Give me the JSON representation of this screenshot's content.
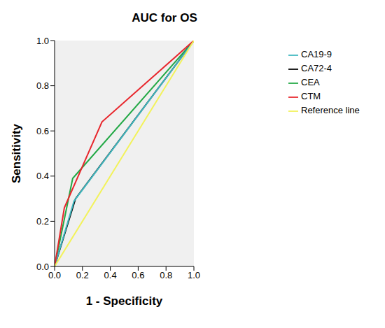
{
  "chart_data": {
    "type": "line",
    "title": "AUC for OS",
    "x_label": "1 - Specificity",
    "y_label": "Sensitivity",
    "xlim": [
      0,
      1
    ],
    "ylim": [
      0,
      1
    ],
    "xticks": [
      {
        "value": 0,
        "label": "0.0"
      },
      0.2,
      0.4,
      0.6,
      0.8,
      {
        "value": 1,
        "label": "1.0"
      }
    ],
    "yticks": [
      {
        "value": 0,
        "label": "0.0"
      },
      0.2,
      0.4,
      0.6,
      0.8,
      {
        "value": 1,
        "label": "1.0"
      }
    ],
    "grid": false,
    "legend": "right",
    "series": [
      {
        "name": "CEA",
        "color": "#22a845",
        "x": [
          0,
          0.13,
          1
        ],
        "values": [
          0,
          0.39,
          1
        ]
      },
      {
        "name": "CA72-4",
        "color": "#000000",
        "x": [
          0,
          0.15,
          1
        ],
        "values": [
          0,
          0.3,
          1
        ]
      },
      {
        "name": "CA19-9",
        "color": "#3fb8c0",
        "x": [
          0,
          0.14,
          1
        ],
        "values": [
          0,
          0.29,
          1
        ]
      },
      {
        "name": "CTM",
        "color": "#e8262c",
        "x": [
          0,
          0.07,
          0.34,
          1
        ],
        "values": [
          0,
          0.26,
          0.64,
          1
        ]
      },
      {
        "name": "Reference line",
        "color": "#f2f25a",
        "x": [
          0,
          1
        ],
        "values": [
          0,
          1
        ]
      }
    ]
  }
}
